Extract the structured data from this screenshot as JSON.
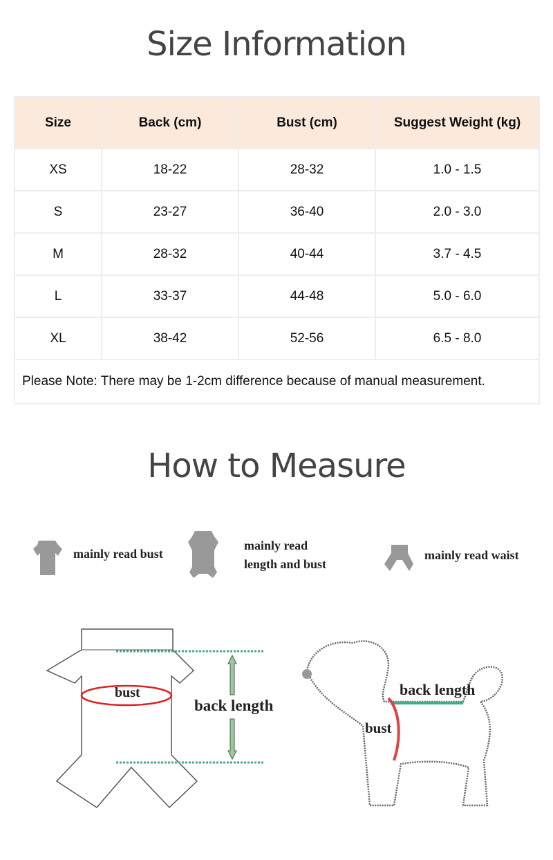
{
  "size_info": {
    "title": "Size Information",
    "headers": [
      "Size",
      "Back (cm)",
      "Bust (cm)",
      "Suggest Weight (kg)"
    ],
    "rows": [
      [
        "XS",
        "18-22",
        "28-32",
        "1.0 - 1.5"
      ],
      [
        "S",
        "23-27",
        "36-40",
        "2.0 - 3.0"
      ],
      [
        "M",
        "28-32",
        "40-44",
        "3.7 - 4.5"
      ],
      [
        "L",
        "33-37",
        "44-48",
        "5.0 - 6.0"
      ],
      [
        "XL",
        "38-42",
        "52-56",
        "6.5 - 8.0"
      ]
    ],
    "note": "Please Note: There may be 1-2cm difference because of manual measurement.",
    "header_bg": "#fbe9dc"
  },
  "measure": {
    "title": "How to Measure",
    "legend": [
      {
        "icon": "short-shirt-icon",
        "label": "mainly read bust"
      },
      {
        "icon": "full-suit-icon",
        "label": "mainly read\nlength and bust"
      },
      {
        "icon": "pants-icon",
        "label": "mainly read waist"
      }
    ],
    "garment_labels": {
      "bust": "bust",
      "back_length": "back length"
    },
    "dog_labels": {
      "bust": "bust",
      "back_length": "back length"
    }
  }
}
